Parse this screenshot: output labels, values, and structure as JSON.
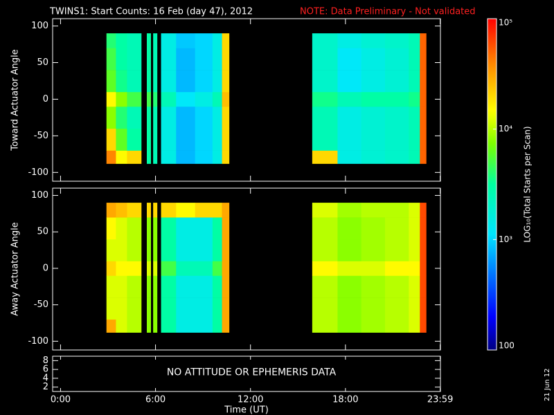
{
  "title": "TWINS1: Start Counts: 16 Feb (day  47), 2012",
  "note": "NOTE: Data Preliminary - Not validated",
  "date": "21 Jun 12",
  "colorbar": {
    "label": "LOG₁₀(Total Starts per Scan)",
    "clim": [
      100,
      100000
    ],
    "log": true,
    "ticks": [
      {
        "value": 100000,
        "label": "10⁵"
      },
      {
        "value": 10000,
        "label": "10⁴"
      },
      {
        "value": 1000,
        "label": "10³"
      },
      100
    ]
  },
  "chart_data": [
    {
      "type": "heatmap",
      "ylabel": "Toward Actuator Angle",
      "xlim": [
        -0.5,
        24
      ],
      "ylim": [
        -112,
        110
      ],
      "yticks": [
        -100,
        -50,
        0,
        50,
        100
      ],
      "x_edges": [
        2.9,
        3.5,
        4.2,
        5.1,
        5.45,
        5.7,
        5.85,
        6.1,
        6.35,
        7.3,
        8.5,
        9.6,
        10.2,
        10.65,
        15.9,
        17.5,
        19,
        20.5,
        22,
        22.7,
        23.1
      ],
      "y_edges": [
        -88,
        -70,
        -40,
        -10,
        10,
        40,
        70,
        90
      ],
      "values": [
        [
          40000,
          15000,
          20000,
          null,
          3000,
          null,
          2500,
          null,
          1500,
          800,
          1000,
          1500,
          20000,
          null,
          20000,
          1500,
          1800,
          2000,
          2500,
          50000
        ],
        [
          20000,
          6000,
          3000,
          null,
          3000,
          null,
          2500,
          null,
          1500,
          800,
          1000,
          1500,
          20000,
          null,
          2500,
          1500,
          1800,
          2000,
          2500,
          50000
        ],
        [
          8000,
          4000,
          2500,
          null,
          3000,
          null,
          2500,
          null,
          1500,
          800,
          1000,
          1500,
          20000,
          null,
          2500,
          1500,
          1800,
          2000,
          2500,
          50000
        ],
        [
          15000,
          8000,
          5000,
          null,
          5000,
          null,
          4000,
          null,
          2500,
          1200,
          1500,
          2500,
          25000,
          null,
          3500,
          2500,
          3000,
          3000,
          3500,
          50000
        ],
        [
          6000,
          3500,
          2500,
          null,
          3000,
          null,
          2500,
          null,
          1500,
          800,
          1000,
          1500,
          20000,
          null,
          2000,
          1200,
          1500,
          1800,
          2500,
          50000
        ],
        [
          5000,
          3000,
          2500,
          null,
          3000,
          null,
          2500,
          null,
          1500,
          800,
          1000,
          1500,
          20000,
          null,
          2000,
          1200,
          1500,
          1800,
          2500,
          50000
        ],
        [
          4000,
          3000,
          2500,
          null,
          3000,
          null,
          2500,
          null,
          1500,
          900,
          1000,
          1500,
          20000,
          null,
          2000,
          1500,
          1800,
          2000,
          2500,
          50000
        ]
      ]
    },
    {
      "type": "heatmap",
      "ylabel": "Away Actuator Angle",
      "xlim": [
        -0.5,
        24
      ],
      "ylim": [
        -112,
        110
      ],
      "yticks": [
        -100,
        -50,
        0,
        50,
        100
      ],
      "x_edges": [
        2.9,
        3.5,
        4.2,
        5.1,
        5.45,
        5.7,
        5.85,
        6.1,
        6.35,
        7.3,
        8.5,
        9.6,
        10.2,
        10.65,
        15.9,
        17.5,
        19,
        20.5,
        22,
        22.7,
        23.1
      ],
      "y_edges": [
        -88,
        -70,
        -40,
        -10,
        10,
        40,
        70,
        90
      ],
      "values": [
        [
          30000,
          12000,
          10000,
          null,
          8000,
          null,
          8000,
          null,
          3000,
          1500,
          1500,
          3000,
          30000,
          null,
          10000,
          8000,
          9000,
          10000,
          12000,
          60000
        ],
        [
          12000,
          12000,
          10000,
          null,
          8000,
          null,
          8000,
          null,
          3000,
          1500,
          1500,
          3000,
          30000,
          null,
          10000,
          8000,
          9000,
          10000,
          12000,
          60000
        ],
        [
          12000,
          12000,
          10000,
          null,
          8000,
          null,
          8000,
          null,
          3000,
          1500,
          1500,
          3000,
          30000,
          null,
          10000,
          8000,
          9000,
          10000,
          12000,
          60000
        ],
        [
          20000,
          15000,
          15000,
          null,
          12000,
          null,
          12000,
          null,
          5000,
          2500,
          2500,
          5000,
          30000,
          null,
          15000,
          12000,
          12000,
          15000,
          15000,
          60000
        ],
        [
          12000,
          12000,
          10000,
          null,
          8000,
          null,
          8000,
          null,
          3000,
          1500,
          1500,
          3000,
          30000,
          null,
          10000,
          8000,
          9000,
          10000,
          12000,
          60000
        ],
        [
          15000,
          12000,
          10000,
          null,
          8000,
          null,
          8000,
          null,
          3000,
          1500,
          1500,
          3000,
          30000,
          null,
          10000,
          8000,
          9000,
          10000,
          12000,
          60000
        ],
        [
          30000,
          25000,
          20000,
          null,
          20000,
          null,
          20000,
          null,
          20000,
          15000,
          20000,
          20000,
          30000,
          null,
          12000,
          9000,
          10000,
          10000,
          12000,
          60000
        ]
      ]
    },
    {
      "type": "empty",
      "annotation": "NO ATTITUDE OR EPHEMERIS DATA",
      "xlabel": "Time (UT)",
      "xlim": [
        -0.5,
        24
      ],
      "ylim": [
        1,
        9
      ],
      "yticks": [
        2,
        4,
        6,
        8
      ],
      "xticks": [
        {
          "value": 0,
          "label": "0:00"
        },
        {
          "value": 6,
          "label": "6:00"
        },
        {
          "value": 12,
          "label": "12:00"
        },
        {
          "value": 18,
          "label": "18:00"
        },
        {
          "value": 23.983,
          "label": "23:59"
        }
      ]
    }
  ]
}
